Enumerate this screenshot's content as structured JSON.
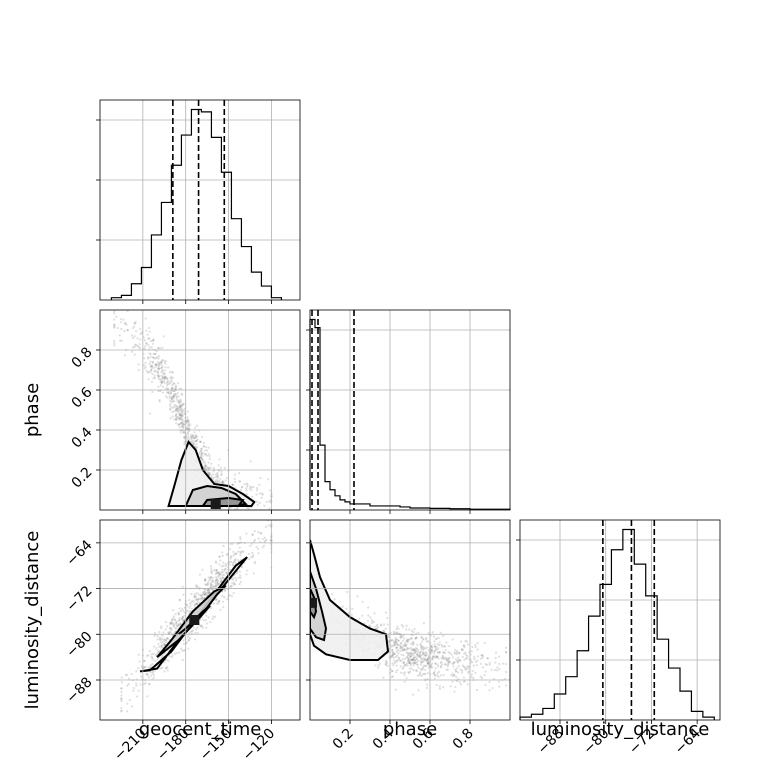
{
  "chart_data": {
    "type": "corner",
    "parameters": [
      "geocent_time",
      "phase",
      "luminosity_distance"
    ],
    "axes": {
      "geocent_time": {
        "label": "geocent_time",
        "range": [
          -240,
          -100
        ],
        "ticks": [
          -210,
          -180,
          -150,
          -120
        ],
        "tick_labels": [
          "−210",
          "−180",
          "−150",
          "−120"
        ]
      },
      "phase": {
        "label": "phase",
        "range": [
          0.0,
          1.0
        ],
        "ticks": [
          0.2,
          0.4,
          0.6,
          0.8
        ],
        "tick_labels": [
          "0.2",
          "0.4",
          "0.6",
          "0.8"
        ]
      },
      "luminosity_distance": {
        "label": "luminosity_distance",
        "range": [
          -95,
          -60
        ],
        "ticks": [
          -88,
          -80,
          -72,
          -64
        ],
        "tick_labels": [
          "−88",
          "−80",
          "−72",
          "−64"
        ]
      }
    },
    "histograms": {
      "geocent_time": {
        "bin_edges": [
          -232,
          -225,
          -218,
          -211,
          -204,
          -197,
          -190,
          -183,
          -176,
          -169,
          -162,
          -155,
          -148,
          -141,
          -134,
          -127,
          -120,
          -113
        ],
        "counts": [
          1,
          2,
          7,
          14,
          28,
          42,
          58,
          71,
          82,
          81,
          70,
          55,
          35,
          23,
          12,
          6,
          1
        ],
        "quantiles": [
          -189,
          -171,
          -153
        ]
      },
      "phase": {
        "bin_edges": [
          0.0,
          0.025,
          0.05,
          0.075,
          0.1,
          0.125,
          0.15,
          0.175,
          0.2,
          0.25,
          0.3,
          0.35,
          0.4,
          0.45,
          0.5,
          0.6,
          0.7,
          0.8,
          1.0
        ],
        "counts": [
          94,
          90,
          32,
          14,
          10,
          7,
          5,
          4,
          3,
          3,
          2,
          2,
          2,
          1.5,
          1,
          0.8,
          0.6,
          0.4
        ],
        "quantiles": [
          0.01,
          0.04,
          0.22
        ]
      },
      "luminosity_distance": {
        "bin_edges": [
          -95,
          -93,
          -91,
          -89,
          -87,
          -85,
          -83,
          -81,
          -79,
          -77,
          -75,
          -73,
          -71,
          -69,
          -67,
          -65,
          -63,
          -61
        ],
        "counts": [
          1,
          2,
          4,
          9,
          15,
          24,
          36,
          47,
          59,
          66,
          54,
          43,
          28,
          18,
          10,
          3,
          1
        ],
        "quantiles": [
          -80.5,
          -75.5,
          -71.5
        ]
      }
    },
    "pairs": [
      {
        "x": "geocent_time",
        "y": "phase",
        "trend": {
          "x": [
            -230,
            -210,
            -190,
            -175,
            -160,
            -145,
            -130,
            -120
          ],
          "y": [
            0.95,
            0.82,
            0.6,
            0.32,
            0.12,
            0.06,
            0.04,
            0.03
          ]
        },
        "contours": [
          {
            "x": [
              -192,
              -188,
              -183,
              -178,
              -173,
              -168,
              -160,
              -150,
              -140,
              -132,
              -134,
              -150,
              -170,
              -185,
              -190,
              -192
            ],
            "y": [
              0.02,
              0.12,
              0.25,
              0.34,
              0.3,
              0.2,
              0.13,
              0.12,
              0.08,
              0.04,
              0.02,
              0.02,
              0.02,
              0.02,
              0.02,
              0.02
            ]
          },
          {
            "x": [
              -180,
              -175,
              -165,
              -155,
              -145,
              -138,
              -150,
              -170,
              -180
            ],
            "y": [
              0.02,
              0.1,
              0.12,
              0.11,
              0.08,
              0.03,
              0.02,
              0.02,
              0.02
            ]
          },
          {
            "x": [
              -168,
              -165,
              -150,
              -140,
              -143,
              -160,
              -168
            ],
            "y": [
              0.02,
              0.05,
              0.06,
              0.05,
              0.02,
              0.02,
              0.02
            ]
          }
        ],
        "density_peak": {
          "x": -159,
          "y": 0.03
        }
      },
      {
        "x": "geocent_time",
        "y": "luminosity_distance",
        "trend": {
          "x": [
            -225,
            -200,
            -180,
            -160,
            -140,
            -120
          ],
          "y": [
            -91,
            -84,
            -78,
            -72,
            -67,
            -62
          ]
        },
        "contours": [
          {
            "x": [
              -212,
              -200,
              -185,
              -170,
              -155,
              -142,
              -137,
              -145,
              -160,
              -175,
              -190,
              -205,
              -212
            ],
            "y": [
              -86.5,
              -86,
              -81,
              -77,
              -72,
              -68,
              -66.5,
              -68,
              -73,
              -78,
              -83,
              -86.3,
              -86.5
            ]
          },
          {
            "x": [
              -200,
              -185,
              -170,
              -158,
              -152,
              -160,
              -175,
              -190,
              -200
            ],
            "y": [
              -84,
              -81,
              -77,
              -73,
              -71.5,
              -72.5,
              -76,
              -81,
              -84
            ]
          },
          {
            "x": [
              -185,
              -170,
              -163,
              -168,
              -180,
              -185
            ],
            "y": [
              -80,
              -77,
              -75,
              -76,
              -79,
              -80
            ]
          }
        ],
        "density_peak": {
          "x": -174,
          "y": -77.5
        }
      },
      {
        "x": "phase",
        "y": "luminosity_distance",
        "trend": {
          "x": [
            0.02,
            0.1,
            0.2,
            0.3,
            0.45,
            0.6,
            0.8,
            0.98
          ],
          "y": [
            -74,
            -76,
            -79,
            -81,
            -83,
            -84,
            -85,
            -86
          ]
        },
        "contours": [
          {
            "x": [
              0.0,
              0.02,
              0.05,
              0.1,
              0.2,
              0.3,
              0.38,
              0.39,
              0.34,
              0.2,
              0.08,
              0.02,
              0.0
            ],
            "y": [
              -63.5,
              -66,
              -70,
              -74,
              -77,
              -79,
              -80,
              -83,
              -84.5,
              -84.5,
              -83.5,
              -82,
              -80
            ]
          },
          {
            "x": [
              0.0,
              0.03,
              0.06,
              0.08,
              0.07,
              0.03,
              0.0
            ],
            "y": [
              -69,
              -72,
              -76,
              -79,
              -81,
              -80.5,
              -79
            ]
          },
          {
            "x": [
              0.0,
              0.02,
              0.03,
              0.02,
              0.0
            ],
            "y": [
              -72,
              -73.5,
              -76,
              -77,
              -76
            ]
          }
        ],
        "density_peak": {
          "x": 0.01,
          "y": -74.5
        }
      }
    ]
  },
  "icons": {
    "scatter_point_color": "#808080",
    "density_fill_colors": [
      "#f0f0f0",
      "#cfcfcf",
      "#8f8f8f",
      "#1a1a1a"
    ]
  }
}
